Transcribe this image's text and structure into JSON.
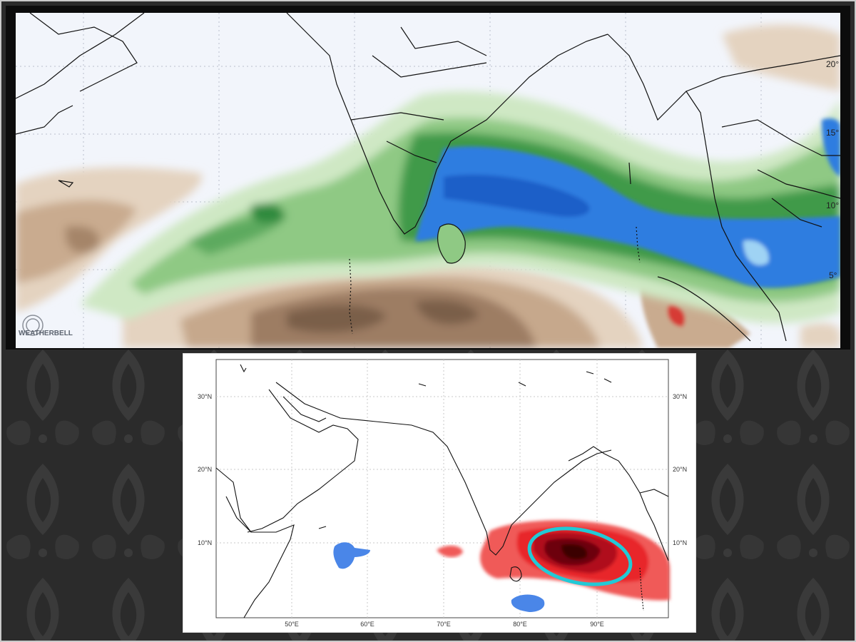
{
  "top_map": {
    "logo": "WEATHERBELL",
    "lat_labels": [
      {
        "text": "20°"
      },
      {
        "text": "15°"
      },
      {
        "text": "10°"
      },
      {
        "text": "5°"
      }
    ],
    "colors": {
      "rain_blue": "#2f7de0",
      "rain_dark_green": "#2f8a3e",
      "rain_light_green": "#a8d39a",
      "dry_brown": "#7a6150",
      "dry_tan": "#d9c2aa",
      "ocean": "#f2f5fb"
    }
  },
  "bottom_map": {
    "lat_labels_left": [
      "30°N",
      "20°N",
      "10°N"
    ],
    "lat_labels_right": [
      "30°N",
      "20°N",
      "10°N"
    ],
    "lon_labels": [
      "50°E",
      "60°E",
      "70°E",
      "80°E",
      "90°E"
    ],
    "colors": {
      "anomaly_red": "#e8282c",
      "anomaly_dark": "#5a0408",
      "anomaly_blue": "#4a86e8",
      "highlight_ring": "#22c9d6"
    }
  }
}
